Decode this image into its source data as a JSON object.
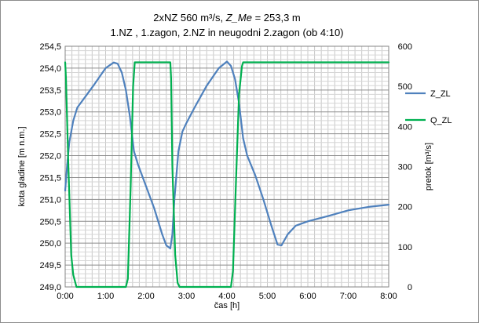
{
  "chart_data": {
    "type": "line",
    "title_lines": [
      "2xNZ 560  m³/s, Z_Me = 253,3  m",
      "1.NZ , 1.zagon,  2.NZ  in neugodni 2.zagon (ob 4:10)"
    ],
    "xlabel": "čas [h]",
    "ylabel_left": "kota gladine [m n.m.]",
    "ylabel_right": "pretok [m³/s]",
    "x_ticks": [
      "0:00",
      "1:00",
      "2:00",
      "3:00",
      "4:00",
      "5:00",
      "6:00",
      "7:00",
      "8:00"
    ],
    "x_range_h": [
      0,
      8
    ],
    "y_left": {
      "min": 249.0,
      "max": 254.5,
      "ticks": [
        "249,0",
        "249,5",
        "250,0",
        "250,5",
        "251,0",
        "251,5",
        "252,0",
        "252,5",
        "253,0",
        "253,5",
        "254,0",
        "254,5"
      ]
    },
    "y_right": {
      "min": 0,
      "max": 600,
      "ticks": [
        "0",
        "100",
        "200",
        "300",
        "400",
        "500",
        "600"
      ]
    },
    "legend_position": "right",
    "grid": true,
    "series": [
      {
        "name": "Z_ZL",
        "axis": "left",
        "color": "#4f81bd",
        "x": [
          0.0,
          0.05,
          0.1,
          0.2,
          0.3,
          0.5,
          0.7,
          1.0,
          1.2,
          1.3,
          1.4,
          1.5,
          1.6,
          1.7,
          1.8,
          2.0,
          2.2,
          2.4,
          2.5,
          2.6,
          2.65,
          2.7,
          2.8,
          2.9,
          3.0,
          3.2,
          3.5,
          3.8,
          4.0,
          4.1,
          4.2,
          4.3,
          4.4,
          4.5,
          4.7,
          4.9,
          5.1,
          5.25,
          5.35,
          5.5,
          5.7,
          6.0,
          6.5,
          7.0,
          7.5,
          8.0
        ],
        "y": [
          251.2,
          251.8,
          252.3,
          252.8,
          253.1,
          253.35,
          253.6,
          254.0,
          254.13,
          254.1,
          253.9,
          253.5,
          252.9,
          252.1,
          251.8,
          251.3,
          250.8,
          250.2,
          249.95,
          249.88,
          250.2,
          251.0,
          252.1,
          252.55,
          252.75,
          253.1,
          253.6,
          254.0,
          254.15,
          254.05,
          253.75,
          253.2,
          252.4,
          252.0,
          251.55,
          251.0,
          250.4,
          249.97,
          249.95,
          250.2,
          250.4,
          250.5,
          250.62,
          250.75,
          250.83,
          250.88
        ]
      },
      {
        "name": "Q_ZL",
        "axis": "right",
        "color": "#00b050",
        "x": [
          0.0,
          0.02,
          0.08,
          0.15,
          0.2,
          0.28,
          1.5,
          1.55,
          1.62,
          1.68,
          1.72,
          2.6,
          2.62,
          2.65,
          2.72,
          2.78,
          2.83,
          4.1,
          4.15,
          4.22,
          4.3,
          4.37,
          4.4,
          8.0
        ],
        "y": [
          560,
          520,
          300,
          80,
          30,
          0,
          0,
          20,
          250,
          500,
          560,
          560,
          520,
          300,
          80,
          10,
          0,
          0,
          40,
          250,
          480,
          550,
          560,
          560
        ]
      }
    ]
  }
}
